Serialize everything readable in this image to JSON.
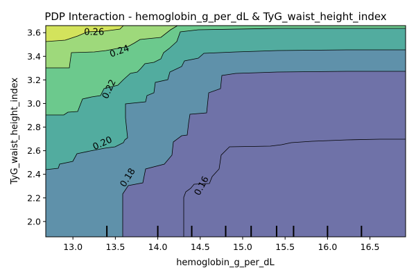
{
  "chart_data": {
    "type": "contour",
    "title": "PDP Interaction - hemoglobin_g_per_dL & TyG_waist_height_index",
    "xlabel": "hemoglobin_g_per_dL",
    "ylabel": "TyG_waist_height_index",
    "xlim": [
      12.68,
      16.92
    ],
    "ylim": [
      1.87,
      3.66
    ],
    "xticks": [
      "13.0",
      "13.5",
      "14.0",
      "14.5",
      "15.0",
      "15.5",
      "16.0",
      "16.5"
    ],
    "yticks": [
      "2.0",
      "2.2",
      "2.4",
      "2.6",
      "2.8",
      "3.0",
      "3.2",
      "3.4",
      "3.6"
    ],
    "colormap": "viridis",
    "level_colors": [
      "#7a5397",
      "#6f72a8",
      "#5f91aa",
      "#52ac9f",
      "#6cc98d",
      "#9ed97b",
      "#d3e35c"
    ],
    "contour_labels": [
      {
        "text": "0.26",
        "x": 13.25,
        "y": 3.6
      },
      {
        "text": "0.24",
        "x": 13.55,
        "y": 3.44
      },
      {
        "text": "0.22",
        "x": 13.43,
        "y": 3.12
      },
      {
        "text": "0.20",
        "x": 13.35,
        "y": 2.66
      },
      {
        "text": "0.18",
        "x": 13.65,
        "y": 2.37
      },
      {
        "text": "0.16",
        "x": 14.52,
        "y": 2.3
      }
    ],
    "rug_x": [
      13.4,
      14.0,
      14.4,
      14.8,
      15.1,
      15.4,
      15.6,
      16.0,
      16.4
    ],
    "grid": false
  }
}
